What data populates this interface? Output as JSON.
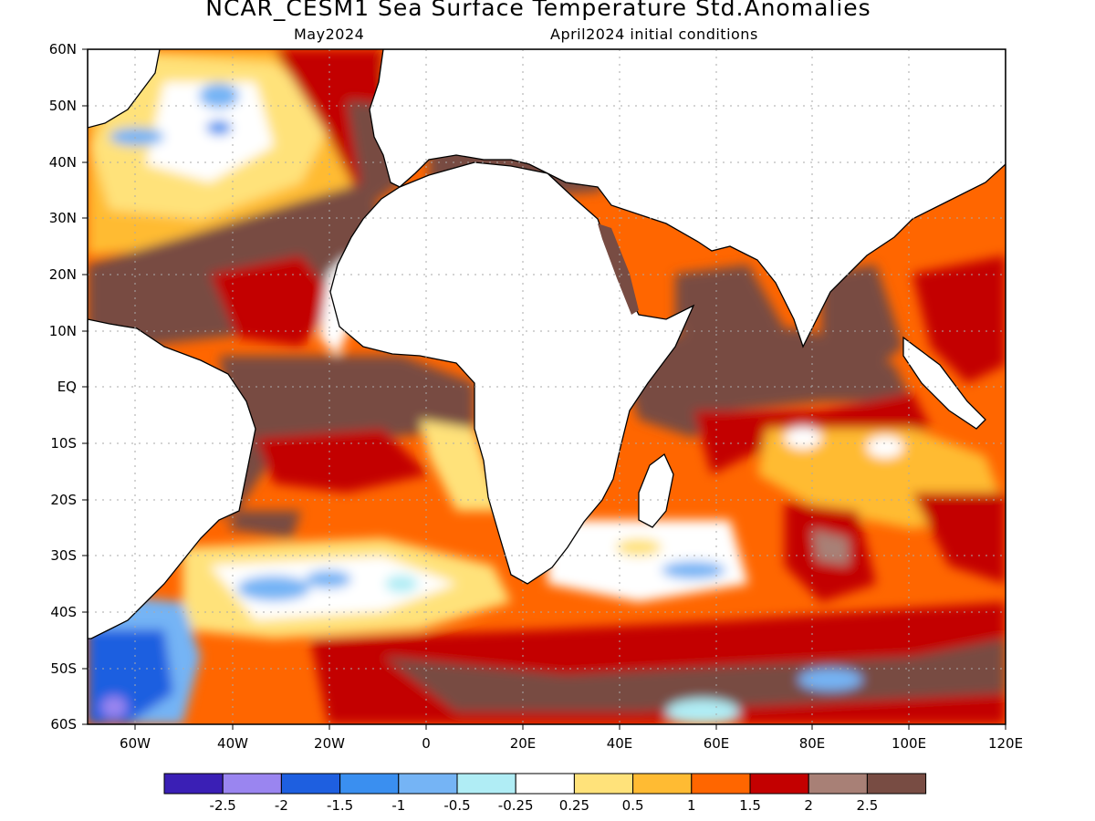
{
  "title": "NCAR_CESM1 Sea Surface Temperature Std.Anomalies",
  "subtitle_left": "May2024",
  "subtitle_right": "April2024 initial conditions",
  "lat_labels": [
    "60N",
    "50N",
    "40N",
    "30N",
    "20N",
    "10N",
    "EQ",
    "10S",
    "20S",
    "30S",
    "40S",
    "50S",
    "60S"
  ],
  "lon_labels": [
    "60W",
    "40W",
    "20W",
    "0",
    "20E",
    "40E",
    "60E",
    "80E",
    "100E",
    "120E"
  ],
  "colorbar": {
    "colors": [
      "#3a1fb5",
      "#9a85f0",
      "#1e5fe0",
      "#3a8ff0",
      "#75b4f5",
      "#b0edf5",
      "#ffffff",
      "#ffe27a",
      "#ffbb33",
      "#ff6600",
      "#c30000",
      "#a88076",
      "#784c43"
    ],
    "tick_labels": [
      "-2.5",
      "-2",
      "-1.5",
      "-1",
      "-0.5",
      "-0.25",
      "0.25",
      "0.5",
      "1",
      "1.5",
      "2",
      "2.5"
    ]
  }
}
